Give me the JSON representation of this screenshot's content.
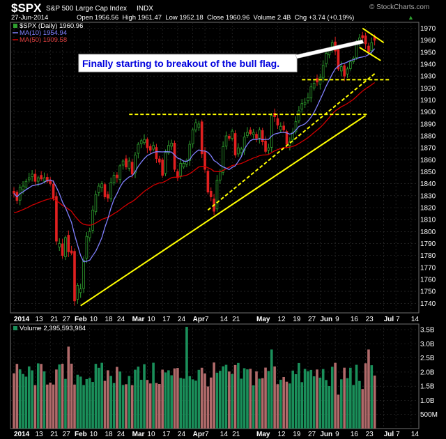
{
  "header": {
    "symbol": "$SPX",
    "name": "S&P 500 Large Cap Index",
    "exchange": "INDX",
    "watermark": "© StockCharts.com",
    "date": "27-Jun-2014",
    "ohlc": "Open 1956.56  High 1961.47  Low 1952.18  Close 1960.96  Volume 2.4B  Chg +3.74 (+0.19%)",
    "change_arrow": "▲"
  },
  "legend": {
    "price": "$SPX (Daily) 1960.96",
    "ma10": "MA(10) 1954.94",
    "ma50": "MA(50) 1909.58"
  },
  "annotation": "Finally starting to breakout of the bull flag.",
  "volume_label": "Volume 2,395,593,984",
  "colors": {
    "up": "#2fa02f",
    "down": "#e02020",
    "ma10": "#8080ff",
    "ma50": "#d00000",
    "trend": "#ffff00",
    "vol_up": "#1a8f5a",
    "vol_down": "#b06a6a",
    "annotation_text": "#0000dd"
  },
  "chart_data": [
    {
      "type": "candlestick",
      "title": "$SPX (Daily)",
      "ylim": [
        1732,
        1975
      ],
      "y_ticks": [
        1740,
        1750,
        1760,
        1770,
        1780,
        1790,
        1800,
        1810,
        1820,
        1830,
        1840,
        1850,
        1860,
        1870,
        1880,
        1890,
        1900,
        1910,
        1920,
        1930,
        1940,
        1950,
        1960,
        1970
      ],
      "x_tick_labels": [
        {
          "label": "2014",
          "bold": true,
          "bar": 0
        },
        {
          "label": "13",
          "bar": 7
        },
        {
          "label": "21",
          "bar": 12
        },
        {
          "label": "27",
          "bar": 16
        },
        {
          "label": "Feb",
          "bold": true,
          "bar": 20
        },
        {
          "label": "10",
          "bar": 25
        },
        {
          "label": "18",
          "bar": 30
        },
        {
          "label": "24",
          "bar": 34
        },
        {
          "label": "Mar",
          "bold": true,
          "bar": 39
        },
        {
          "label": "10",
          "bar": 44
        },
        {
          "label": "17",
          "bar": 49
        },
        {
          "label": "24",
          "bar": 54
        },
        {
          "label": "Apr",
          "bold": true,
          "bar": 59
        },
        {
          "label": "7",
          "bar": 63
        },
        {
          "label": "14",
          "bar": 68
        },
        {
          "label": "21",
          "bar": 72
        },
        {
          "label": "May",
          "bold": true,
          "bar": 80
        },
        {
          "label": "12",
          "bar": 87
        },
        {
          "label": "19",
          "bar": 92
        },
        {
          "label": "27",
          "bar": 97
        },
        {
          "label": "Jun",
          "bold": true,
          "bar": 101
        },
        {
          "label": "9",
          "bar": 106
        },
        {
          "label": "16",
          "bar": 111
        },
        {
          "label": "23",
          "bar": 116
        },
        {
          "label": "Jul",
          "bold": true,
          "bar": 122
        },
        {
          "label": "7",
          "bar": 126
        },
        {
          "label": "14",
          "bar": 131
        }
      ],
      "closes": [
        1832,
        1826,
        1837,
        1838,
        1842,
        1845,
        1848,
        1842,
        1845,
        1844,
        1845,
        1842,
        1840,
        1828,
        1792,
        1790,
        1780,
        1795,
        1783,
        1782,
        1742,
        1755,
        1752,
        1776,
        1796,
        1800,
        1818,
        1831,
        1838,
        1840,
        1829,
        1828,
        1841,
        1847,
        1845,
        1855,
        1859,
        1854,
        1859,
        1848,
        1864,
        1873,
        1876,
        1877,
        1870,
        1868,
        1872,
        1861,
        1858,
        1847,
        1866,
        1872,
        1874,
        1852,
        1845,
        1857,
        1857,
        1859,
        1873,
        1885,
        1891,
        1890,
        1865,
        1852,
        1833,
        1829,
        1817,
        1843,
        1850,
        1871,
        1880,
        1878,
        1884,
        1864,
        1870,
        1869,
        1879,
        1883,
        1882,
        1883,
        1878,
        1885,
        1875,
        1867,
        1870,
        1897,
        1896,
        1889,
        1888,
        1885,
        1873,
        1875,
        1883,
        1892,
        1901,
        1907,
        1908,
        1912,
        1921,
        1924,
        1925,
        1929,
        1939,
        1949,
        1952,
        1958,
        1951,
        1936,
        1938,
        1930,
        1936,
        1942,
        1945,
        1958,
        1962,
        1962,
        1957,
        1950,
        1958,
        1960
      ]
    },
    {
      "type": "bar",
      "title": "Volume",
      "ylim": [
        0,
        3.7
      ],
      "y_ticks": [
        {
          "value": 0.5,
          "label": "500M"
        },
        {
          "value": 1.0,
          "label": "1.0B"
        },
        {
          "value": 1.5,
          "label": "1.5B"
        },
        {
          "value": 2.0,
          "label": "2.0B"
        },
        {
          "value": 2.5,
          "label": "2.5B"
        },
        {
          "value": 3.0,
          "label": "3.0B"
        },
        {
          "value": 3.5,
          "label": "3.5B"
        }
      ],
      "unit": "billions"
    }
  ]
}
